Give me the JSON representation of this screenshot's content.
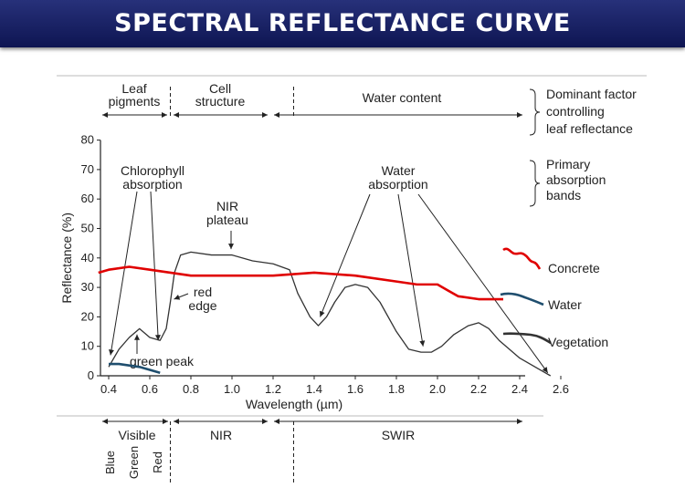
{
  "title": "SPECTRAL REFLECTANCE CURVE",
  "chart_data": {
    "type": "line",
    "xlabel": "Wavelength (µm)",
    "ylabel": "Reflectance (%)",
    "xlim": [
      0.35,
      2.6
    ],
    "ylim": [
      0,
      80
    ],
    "xticks": [
      "0.4",
      "0.6",
      "0.8",
      "1.0",
      "1.2",
      "1.4",
      "1.6",
      "1.8",
      "2.0",
      "2.2",
      "2.4",
      "2.6"
    ],
    "yticks": [
      "0",
      "10",
      "20",
      "30",
      "40",
      "50",
      "60",
      "70",
      "80"
    ],
    "series": [
      {
        "name": "Vegetation",
        "color": "#333333",
        "x": [
          0.4,
          0.45,
          0.5,
          0.55,
          0.6,
          0.65,
          0.68,
          0.7,
          0.72,
          0.75,
          0.8,
          0.9,
          1.0,
          1.1,
          1.2,
          1.28,
          1.32,
          1.38,
          1.42,
          1.46,
          1.5,
          1.55,
          1.6,
          1.66,
          1.72,
          1.8,
          1.86,
          1.92,
          1.97,
          2.02,
          2.08,
          2.15,
          2.2,
          2.25,
          2.3,
          2.4,
          2.5,
          2.55
        ],
        "y": [
          3,
          9,
          13,
          16,
          13,
          12,
          16,
          25,
          35,
          41,
          42,
          41,
          41,
          39,
          38,
          36,
          28,
          20,
          17,
          20,
          25,
          30,
          31,
          30,
          25,
          15,
          9,
          8,
          8,
          10,
          14,
          17,
          18,
          16,
          12,
          6,
          2,
          0
        ]
      },
      {
        "name": "Concrete",
        "color": "#e00000",
        "x": [
          0.35,
          0.4,
          0.5,
          0.6,
          0.7,
          0.8,
          1.0,
          1.2,
          1.4,
          1.6,
          1.8,
          1.9,
          2.0,
          2.05,
          2.1,
          2.2,
          2.32
        ],
        "y": [
          35,
          36,
          37,
          36,
          35,
          34,
          34,
          34,
          35,
          34,
          32,
          31,
          31,
          29,
          27,
          26,
          26
        ]
      },
      {
        "name": "Water",
        "color": "#1f4e6e",
        "x": [
          0.4,
          0.45,
          0.5,
          0.55,
          0.6,
          0.65
        ],
        "y": [
          4,
          4,
          3.5,
          3,
          2,
          1
        ]
      }
    ],
    "legend": [
      {
        "label": "Concrete",
        "color": "#e00000"
      },
      {
        "label": "Water",
        "color": "#1f4e6e"
      },
      {
        "label": "Vegetation",
        "color": "#333333"
      }
    ]
  },
  "annotations": {
    "top_regions": [
      "Leaf\npigments",
      "Cell\nstructure",
      "Water content"
    ],
    "dominant_factor": "Dominant factor\ncontrolling\nleaf reflectance",
    "primary_bands": "Primary\nabsorption\nbands",
    "chlorophyll": "Chlorophyll\nabsorption",
    "water_absorption": "Water\nabsorption",
    "nir_plateau": "NIR\nplateau",
    "red_edge": "red\nedge",
    "green_peak": "green peak",
    "bottom_regions": [
      "Visible",
      "NIR",
      "SWIR"
    ],
    "visible_bands": [
      "Blue",
      "Green",
      "Red"
    ]
  }
}
